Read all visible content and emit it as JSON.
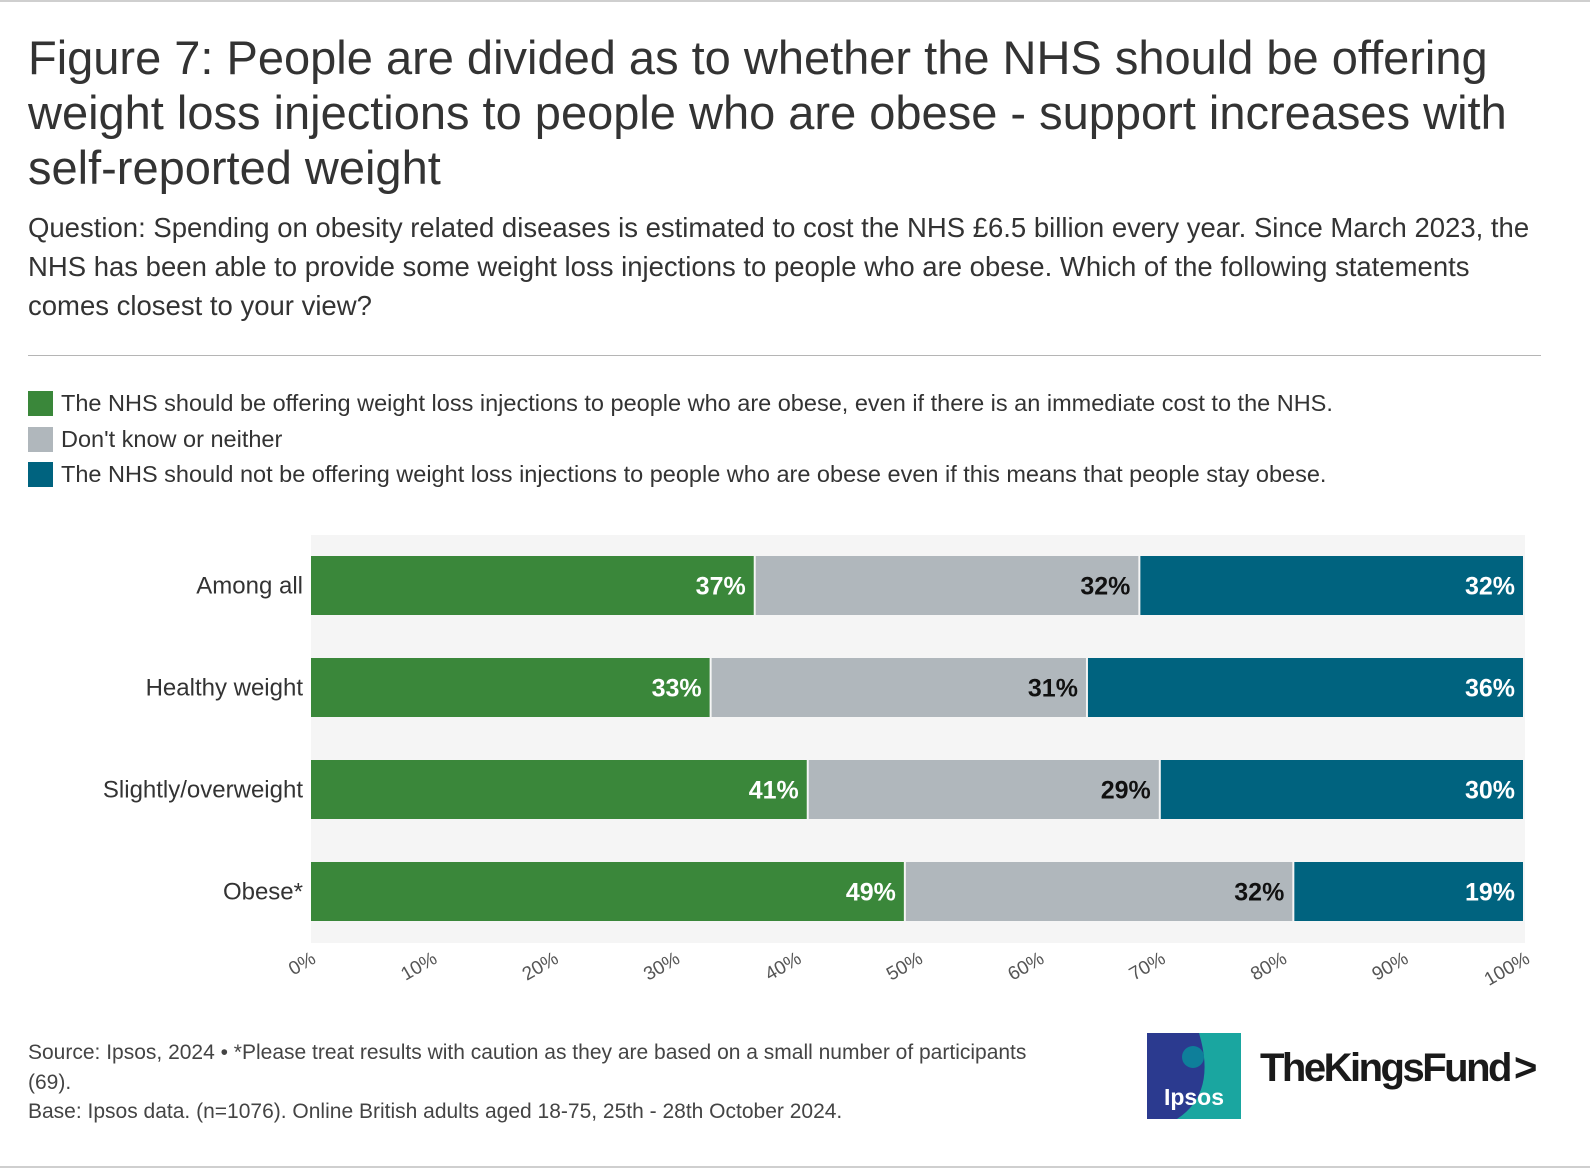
{
  "title": "Figure 7: People are divided as to whether the NHS should be offering weight loss injections to people who are obese - support increases with self-reported weight",
  "subtitle": "Question: Spending on obesity related diseases is estimated to cost the NHS £6.5 billion every year. Since March 2023, the NHS has been able to provide some weight loss injections to people who are obese. Which of the following statements comes closest to your view?",
  "legend": [
    {
      "label": "The NHS should be offering weight loss injections to people who are obese, even if there is an immediate cost to the NHS.",
      "color": "#3a873a"
    },
    {
      "label": "Don't know or neither",
      "color": "#b0b7bc"
    },
    {
      "label": "The NHS should not be offering weight loss injections to people who are obese even if this means that people stay obese.",
      "color": "#00637f"
    }
  ],
  "chart_data": {
    "type": "bar",
    "orientation": "horizontal",
    "stacked": true,
    "categories": [
      "Among all",
      "Healthy weight",
      "Slightly/overweight",
      "Obese*"
    ],
    "series": [
      {
        "name": "The NHS should be offering weight loss injections to people who are obese, even if there is an immediate cost to the NHS.",
        "values": [
          37,
          33,
          41,
          49
        ],
        "labels": [
          "37%",
          "33%",
          "41%",
          "49%"
        ],
        "color": "#3a873a",
        "label_color": "#ffffff"
      },
      {
        "name": "Don't know or neither",
        "values": [
          32,
          31,
          29,
          32
        ],
        "labels": [
          "32%",
          "31%",
          "29%",
          "32%"
        ],
        "color": "#b0b7bc",
        "label_color": "#111111"
      },
      {
        "name": "The NHS should not be offering weight loss injections to people who are obese even if this means that people stay obese.",
        "values": [
          32,
          36,
          30,
          19
        ],
        "labels": [
          "32%",
          "36%",
          "30%",
          "19%"
        ],
        "color": "#00637f",
        "label_color": "#ffffff"
      }
    ],
    "xlim": [
      0,
      100
    ],
    "xticks": [
      "0%",
      "10%",
      "20%",
      "30%",
      "40%",
      "50%",
      "60%",
      "70%",
      "80%",
      "90%",
      "100%"
    ],
    "grid": false,
    "legend_position": "top"
  },
  "footer": {
    "source": "Source: Ipsos, 2024 • *Please treat results with caution as they are based on a small number of participants (69).",
    "base": "Base: Ipsos data. (n=1076). Online British adults aged 18-75, 25th - 28th October 2024."
  },
  "logos": {
    "ipsos": "Ipsos",
    "kings_fund": "TheKingsFund",
    "kings_fund_chevron": ">"
  }
}
